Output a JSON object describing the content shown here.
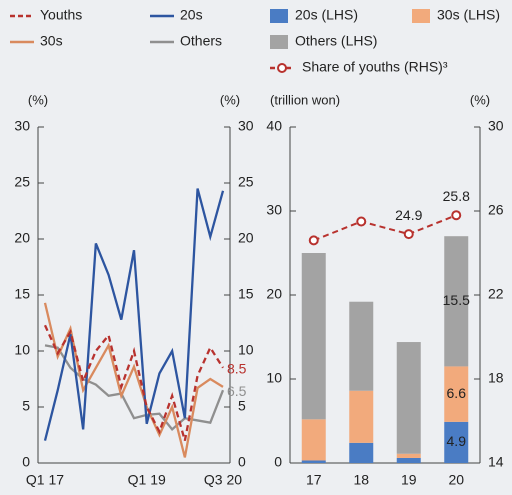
{
  "chart_data": [
    {
      "type": "line",
      "categories": [
        "Q1 17",
        null,
        null,
        null,
        null,
        null,
        null,
        null,
        "Q1 19",
        null,
        null,
        null,
        null,
        null,
        "Q3 20"
      ],
      "series": [
        {
          "name": "Youths",
          "color": "#b8322e",
          "dash": true,
          "values": [
            12.3,
            9.8,
            11.7,
            7.3,
            10,
            11.4,
            6.8,
            10,
            5,
            2.8,
            6,
            2,
            7.8,
            10.3,
            8.5
          ],
          "value_labels": [
            null,
            null,
            null,
            null,
            null,
            null,
            null,
            null,
            null,
            null,
            null,
            null,
            null,
            null,
            "8.5"
          ]
        },
        {
          "name": "20s",
          "color": "#2d55a0",
          "values": [
            2,
            6.5,
            11.5,
            3,
            19.6,
            16.8,
            12.8,
            19,
            3.5,
            8,
            10,
            4,
            24.5,
            20.2,
            24.3
          ]
        },
        {
          "name": "30s",
          "color": "#d98a5e",
          "values": [
            14.3,
            9.5,
            12,
            6.5,
            8.5,
            10.5,
            6,
            8.6,
            5,
            2.5,
            5,
            0.5,
            6.7,
            7.5,
            6.8
          ]
        },
        {
          "name": "Others",
          "color": "#8f8f8f",
          "values": [
            10.5,
            10.3,
            8.5,
            7.5,
            7,
            6,
            6.2,
            4,
            4.3,
            4.4,
            3,
            4,
            3.8,
            3.6,
            6.5
          ],
          "value_labels": [
            null,
            null,
            null,
            null,
            null,
            null,
            null,
            null,
            null,
            null,
            null,
            null,
            null,
            null,
            "6.5"
          ]
        }
      ],
      "y_label": "(%)",
      "y2_label": "(%)",
      "ylim": [
        0,
        30
      ],
      "yticks": [
        0,
        5,
        10,
        15,
        20,
        25,
        30
      ],
      "y2lim": [
        0,
        30
      ],
      "y2ticks": [
        0,
        5,
        10,
        15,
        20,
        25,
        30
      ]
    },
    {
      "type": "bar",
      "stacked": true,
      "categories": [
        "17",
        "18",
        "19",
        "20"
      ],
      "series": [
        {
          "name": "20s (LHS)",
          "color": "#4a7cc4",
          "values": [
            0.3,
            2.4,
            0.6,
            4.9
          ],
          "value_labels": [
            null,
            null,
            null,
            "4.9"
          ]
        },
        {
          "name": "30s (LHS)",
          "color": "#f2aa7c",
          "values": [
            4.9,
            6.2,
            0.5,
            6.6
          ],
          "value_labels": [
            null,
            null,
            null,
            "6.6"
          ]
        },
        {
          "name": "Others (LHS)",
          "color": "#a3a3a3",
          "values": [
            19.8,
            10.6,
            13.3,
            15.5
          ],
          "value_labels": [
            null,
            null,
            null,
            "15.5"
          ]
        },
        {
          "name": "Share of youths (RHS)³",
          "type": "line",
          "axis": "y2",
          "color": "#b8322e",
          "dash": true,
          "marker": "circle",
          "values": [
            24.6,
            25.5,
            24.9,
            25.8
          ],
          "value_labels": [
            null,
            null,
            "24.9",
            "25.8"
          ]
        }
      ],
      "y_label": "(trillion won)",
      "y2_label": "(%)",
      "ylim": [
        0,
        40
      ],
      "yticks": [
        0,
        10,
        20,
        30,
        40
      ],
      "y2lim": [
        14,
        30
      ],
      "y2ticks": [
        14,
        18,
        22,
        26,
        30
      ]
    }
  ]
}
